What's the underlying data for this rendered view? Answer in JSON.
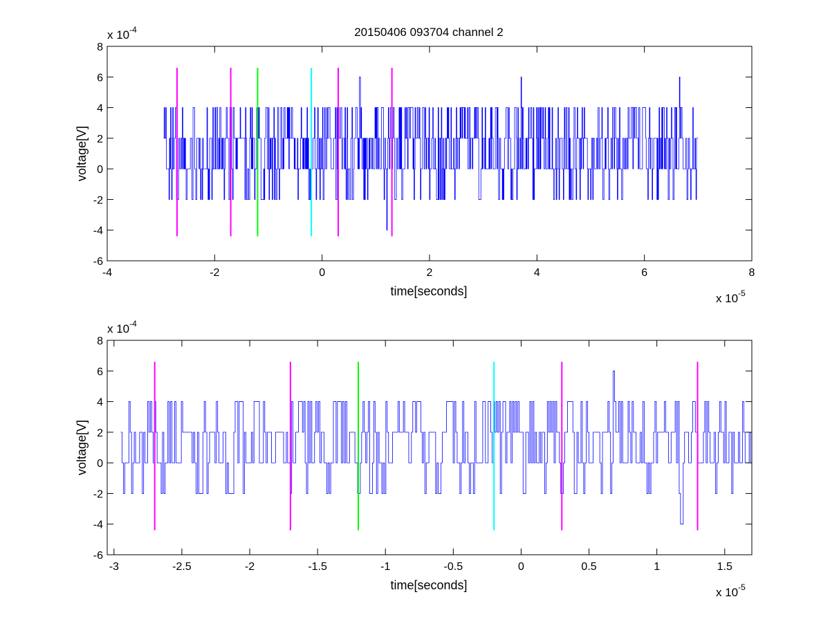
{
  "figure": {
    "title": "20150406 093704 channel 2"
  },
  "chart_data": [
    {
      "type": "line",
      "title": "20150406 093704 channel 2",
      "xlabel": "time[seconds]",
      "ylabel": "voltage[V]",
      "x_exponent_label": "x 10",
      "x_exponent": "-5",
      "y_exponent_label": "x 10",
      "y_exponent": "-4",
      "xlim": [
        -4e-05,
        8e-05
      ],
      "ylim": [
        -0.0006,
        0.0008
      ],
      "xticks": [
        -4e-05,
        -2e-05,
        0,
        2e-05,
        4e-05,
        6e-05,
        8e-05
      ],
      "xtick_labels": [
        "-4",
        "-2",
        "0",
        "2",
        "4",
        "6",
        "8"
      ],
      "yticks": [
        -0.0006,
        -0.0004,
        -0.0002,
        0,
        0.0002,
        0.0004,
        0.0006,
        0.0008
      ],
      "ytick_labels": [
        "-6",
        "-4",
        "-2",
        "0",
        "2",
        "4",
        "6",
        "8"
      ],
      "grid": false,
      "signal": {
        "color": "#0000ff",
        "x_start": -2.95e-05,
        "x_end": 7e-05,
        "points": 1000,
        "baseline": 0.0002,
        "levels": [
          -0.0004,
          -0.0002,
          0,
          0.0002,
          0.0004,
          0.0006
        ],
        "peaks": [
          {
            "x": 7e-06,
            "y": 0.0006
          },
          {
            "x": 3.7e-05,
            "y": 0.0006
          },
          {
            "x": 6.65e-05,
            "y": 0.0006
          },
          {
            "x": 1.2e-05,
            "y": -0.0004
          }
        ]
      },
      "markers": [
        {
          "x": -2.7e-05,
          "color": "#ff00ff",
          "y0": -0.00044,
          "y1": 0.00066
        },
        {
          "x": -1.7e-05,
          "color": "#ff00ff",
          "y0": -0.00044,
          "y1": 0.00066
        },
        {
          "x": -1.2e-05,
          "color": "#00ff00",
          "y0": -0.00044,
          "y1": 0.00066
        },
        {
          "x": -2e-06,
          "color": "#00ffff",
          "y0": -0.00044,
          "y1": 0.00066
        },
        {
          "x": 3e-06,
          "color": "#ff00ff",
          "y0": -0.00044,
          "y1": 0.00066
        },
        {
          "x": 1.3e-05,
          "color": "#ff00ff",
          "y0": -0.00044,
          "y1": 0.00066
        }
      ]
    },
    {
      "type": "line",
      "title": "",
      "xlabel": "time[seconds]",
      "ylabel": "voltage[V]",
      "x_exponent_label": "x 10",
      "x_exponent": "-5",
      "y_exponent_label": "x 10",
      "y_exponent": "-4",
      "xlim": [
        -3.05e-05,
        1.7e-05
      ],
      "ylim": [
        -0.0006,
        0.0008
      ],
      "xticks": [
        -3e-05,
        -2.5e-05,
        -2e-05,
        -1.5e-05,
        -1e-05,
        -5e-06,
        0,
        5e-06,
        1e-05,
        1.5e-05
      ],
      "xtick_labels": [
        "-3",
        "-2.5",
        "-2",
        "-1.5",
        "-1",
        "-0.5",
        "0",
        "0.5",
        "1",
        "1.5"
      ],
      "yticks": [
        -0.0006,
        -0.0004,
        -0.0002,
        0,
        0.0002,
        0.0004,
        0.0006,
        0.0008
      ],
      "ytick_labels": [
        "-6",
        "-4",
        "-2",
        "0",
        "2",
        "4",
        "6",
        "8"
      ],
      "grid": false,
      "signal": {
        "color": "#0000ff",
        "x_start": -2.95e-05,
        "x_end": 1.7e-05,
        "points": 470,
        "baseline": 0.0002,
        "levels": [
          -0.0004,
          -0.0002,
          0,
          0.0002,
          0.0004,
          0.0006
        ],
        "peaks": [
          {
            "x": 6.8e-06,
            "y": 0.0006
          },
          {
            "x": 1.18e-05,
            "y": -0.0004
          }
        ]
      },
      "markers": [
        {
          "x": -2.7e-05,
          "color": "#ff00ff",
          "y0": -0.00044,
          "y1": 0.00066
        },
        {
          "x": -1.7e-05,
          "color": "#ff00ff",
          "y0": -0.00044,
          "y1": 0.00066
        },
        {
          "x": -1.2e-05,
          "color": "#00ff00",
          "y0": -0.00044,
          "y1": 0.00066
        },
        {
          "x": -2e-06,
          "color": "#00ffff",
          "y0": -0.00044,
          "y1": 0.00066
        },
        {
          "x": 3e-06,
          "color": "#ff00ff",
          "y0": -0.00044,
          "y1": 0.00066
        },
        {
          "x": 1.3e-05,
          "color": "#ff00ff",
          "y0": -0.00044,
          "y1": 0.00066
        }
      ]
    }
  ]
}
